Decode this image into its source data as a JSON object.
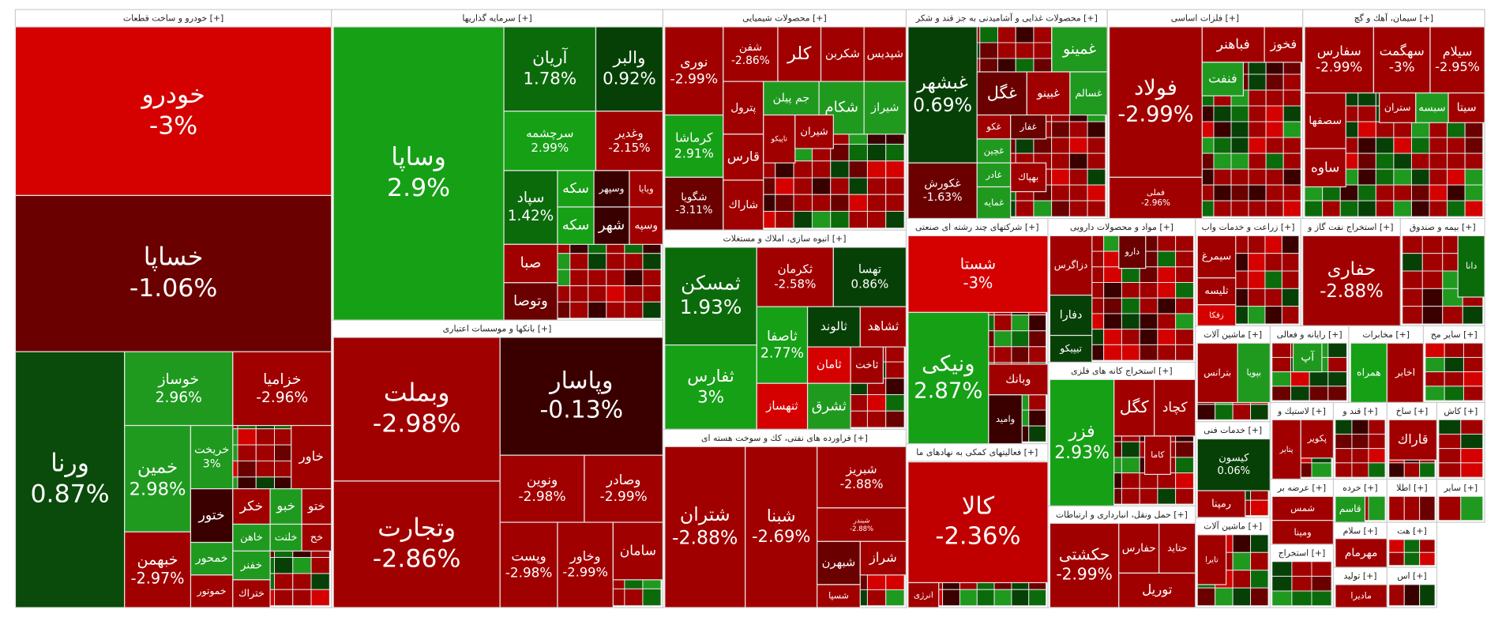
{
  "sectors": [
    {
      "title": "خودرو و ساخت قطعات [+]",
      "tiles": [
        {
          "label": "خودرو",
          "change": "-3%",
          "color": "#d50000"
        },
        {
          "label": "خساپا",
          "change": "-1.06%",
          "color": "#6b0000"
        },
        {
          "label": "ورنا",
          "change": "0.87%",
          "color": "#0a4a0a"
        },
        {
          "label": "خوساز",
          "change": "2.96%",
          "color": "#1f9a1f"
        },
        {
          "label": "خزامیا",
          "change": "-2.96%",
          "color": "#a10000"
        },
        {
          "label": "خمین",
          "change": "2.98%",
          "color": "#1f9a1f"
        },
        {
          "label": "خریخت",
          "change": "3%",
          "color": "#1f9a1f"
        },
        {
          "label": "خاور",
          "color": "#a10000"
        },
        {
          "label": "ختور",
          "color": "#3a0000"
        },
        {
          "label": "خکر",
          "color": "#a10000"
        },
        {
          "label": "خبو",
          "color": "#1f9a1f"
        },
        {
          "label": "ختو",
          "color": "#a10000"
        },
        {
          "label": "خاهن",
          "color": "#1f9a1f"
        },
        {
          "label": "خلنت",
          "color": "#1f9a1f"
        },
        {
          "label": "خح",
          "color": "#a10000"
        },
        {
          "label": "خمحور",
          "color": "#1f9a1f"
        },
        {
          "label": "خفنر",
          "color": "#1f9a1f"
        },
        {
          "label": "خموتور",
          "color": "#a10000"
        },
        {
          "label": "ختراك",
          "color": "#a10000"
        },
        {
          "label": "خبهمن",
          "change": "-2.97%",
          "color": "#a10000"
        }
      ]
    },
    {
      "title": "سرمایه گذاریها [+]",
      "tiles": [
        {
          "label": "وساپا",
          "change": "2.9%",
          "color": "#16a016"
        },
        {
          "label": "آریان",
          "change": "1.78%",
          "color": "#0b6b0b"
        },
        {
          "label": "والبر",
          "change": "0.92%",
          "color": "#064006"
        },
        {
          "label": "سرچشمه",
          "change": "2.99%",
          "color": "#16a016"
        },
        {
          "label": "وغدیر",
          "change": "-2.15%",
          "color": "#a10000"
        },
        {
          "label": "سپاد",
          "change": "1.42%",
          "color": "#0b6b0b"
        },
        {
          "label": "سکه",
          "color": "#16a016"
        },
        {
          "label": "وسپهر",
          "color": "#3a0000"
        },
        {
          "label": "ویایا",
          "color": "#a10000"
        },
        {
          "label": "سکه",
          "color": "#16a016"
        },
        {
          "label": "شهر",
          "color": "#3a0000"
        },
        {
          "label": "وسپه",
          "color": "#a10000"
        },
        {
          "label": "صبا",
          "color": "#a10000"
        },
        {
          "label": "وتوصا",
          "color": "#6b0000"
        }
      ]
    },
    {
      "title": "بانكها و موسسات اعتباری [+]",
      "tiles": [
        {
          "label": "وبملت",
          "change": "-2.98%",
          "color": "#a10000"
        },
        {
          "label": "وپاسار",
          "change": "-0.13%",
          "color": "#3a0000"
        },
        {
          "label": "وتجارت",
          "change": "-2.86%",
          "color": "#a10000"
        },
        {
          "label": "ونوین",
          "change": "-2.98%",
          "color": "#a10000"
        },
        {
          "label": "وصادر",
          "change": "-2.99%",
          "color": "#a10000"
        },
        {
          "label": "وپست",
          "change": "-2.98%",
          "color": "#a10000"
        },
        {
          "label": "وخاور",
          "change": "-2.99%",
          "color": "#a10000"
        },
        {
          "label": "سامان",
          "color": "#a10000"
        }
      ]
    },
    {
      "title": "محصولات شیمیایی [+]",
      "tiles": [
        {
          "label": "نوری",
          "change": "-2.99%",
          "color": "#a10000"
        },
        {
          "label": "کرماشا",
          "change": "2.91%",
          "color": "#16a016"
        },
        {
          "label": "شگویا",
          "change": "-3.11%",
          "color": "#6b0000"
        },
        {
          "label": "شفن",
          "change": "-2.86%",
          "color": "#a10000"
        },
        {
          "label": "كلر",
          "color": "#a10000"
        },
        {
          "label": "شکربن",
          "color": "#a10000"
        },
        {
          "label": "شپدیس",
          "color": "#a10000"
        },
        {
          "label": "پترول",
          "color": "#a10000"
        },
        {
          "label": "جم پیلن",
          "color": "#1f9a1f"
        },
        {
          "label": "شکام",
          "color": "#1f9a1f"
        },
        {
          "label": "شیراز",
          "color": "#1f9a1f"
        },
        {
          "label": "قارس",
          "color": "#a10000"
        },
        {
          "label": "تاپیکو",
          "color": "#a10000"
        },
        {
          "label": "شیران",
          "color": "#a10000"
        },
        {
          "label": "شاراك",
          "color": "#a10000"
        }
      ]
    },
    {
      "title": "انبوه سازی، املاك و مستغلات [+]",
      "tiles": [
        {
          "label": "ثمسکن",
          "change": "1.93%",
          "color": "#0b6b0b"
        },
        {
          "label": "ثفارس",
          "change": "3%",
          "color": "#16a016"
        },
        {
          "label": "ثکرمان",
          "change": "-2.58%",
          "color": "#a10000"
        },
        {
          "label": "تهسا",
          "change": "0.86%",
          "color": "#064006"
        },
        {
          "label": "ثاصفا",
          "change": "2.77%",
          "color": "#16a016"
        },
        {
          "label": "ثالوند",
          "color": "#064006"
        },
        {
          "label": "ثشاهد",
          "color": "#a10000"
        },
        {
          "label": "ثامان",
          "color": "#d50000"
        },
        {
          "label": "ثاخت",
          "color": "#a10000"
        },
        {
          "label": "ثنهساز",
          "color": "#d50000"
        },
        {
          "label": "ثشرق",
          "color": "#1f9a1f"
        }
      ]
    },
    {
      "title": "فراورده های نفتی، كك و سوخت هسته ای [+]",
      "tiles": [
        {
          "label": "شتران",
          "change": "-2.88%",
          "color": "#a10000"
        },
        {
          "label": "شبنا",
          "change": "-2.69%",
          "color": "#a10000"
        },
        {
          "label": "شبریز",
          "change": "-2.88%",
          "color": "#a10000"
        },
        {
          "label": "شبندر",
          "change": "-2.88%",
          "color": "#a10000"
        },
        {
          "label": "شبهرن",
          "color": "#6b0000"
        },
        {
          "label": "شراز",
          "color": "#a10000"
        },
        {
          "label": "شسپا",
          "color": "#a10000"
        }
      ]
    },
    {
      "title": "محصولات غذایی و آشامیدنی به جز قند و شکر [+]",
      "tiles": [
        {
          "label": "غبشهر",
          "change": "0.69%",
          "color": "#064006"
        },
        {
          "label": "غکورش",
          "change": "-1.63%",
          "color": "#6b0000"
        },
        {
          "label": "غمینو",
          "color": "#1f9a1f"
        },
        {
          "label": "غگل",
          "color": "#6b0000"
        },
        {
          "label": "غبینو",
          "color": "#a10000"
        },
        {
          "label": "غسالم",
          "color": "#1f9a1f"
        },
        {
          "label": "غکو",
          "color": "#a10000"
        },
        {
          "label": "غفار",
          "color": "#6b0000"
        },
        {
          "label": "غچین",
          "color": "#1f9a1f"
        },
        {
          "label": "غادر",
          "color": "#1f9a1f"
        },
        {
          "label": "بهپاك",
          "color": "#a10000"
        },
        {
          "label": "غمایه",
          "color": "#1f9a1f"
        }
      ]
    },
    {
      "title": "فلزات اساسی [+]",
      "tiles": [
        {
          "label": "فولاد",
          "change": "-2.99%",
          "color": "#a10000"
        },
        {
          "label": "فملی",
          "change": "-2.96%",
          "color": "#a10000"
        },
        {
          "label": "فباهنر",
          "color": "#a10000"
        },
        {
          "label": "فخوز",
          "color": "#a10000"
        },
        {
          "label": "فنفت",
          "color": "#1f9a1f"
        }
      ]
    },
    {
      "title": "سیمان، آهك و گچ [+]",
      "tiles": [
        {
          "label": "سفارس",
          "change": "-2.99%",
          "color": "#a10000"
        },
        {
          "label": "سهگمت",
          "change": "-3%",
          "color": "#a10000"
        },
        {
          "label": "سیلام",
          "change": "-2.95%",
          "color": "#a10000"
        },
        {
          "label": "سصفها",
          "color": "#a10000"
        },
        {
          "label": "ستران",
          "color": "#a10000"
        },
        {
          "label": "سبسه",
          "color": "#1f9a1f"
        },
        {
          "label": "سیتا",
          "color": "#a10000"
        },
        {
          "label": "ساوه",
          "color": "#a10000"
        }
      ]
    },
    {
      "title": "شرکتهای چند رشته ای صنعتی [+]",
      "tiles": [
        {
          "label": "شستا",
          "change": "-3%",
          "color": "#d50000"
        },
        {
          "label": "ونیکی",
          "change": "2.87%",
          "color": "#16a016"
        },
        {
          "label": "وبانك",
          "color": "#a10000"
        },
        {
          "label": "وامید",
          "color": "#3a0000"
        }
      ]
    },
    {
      "title": "فعالیتهای کمکی به نهادهای ما [+]",
      "tiles": [
        {
          "label": "کالا",
          "change": "-2.36%",
          "color": "#c00000"
        },
        {
          "label": "انرژی",
          "color": "#a10000"
        }
      ]
    },
    {
      "title": "مواد و محصولات دارویی [+]",
      "tiles": [
        {
          "label": "دزاگرس",
          "color": "#a10000"
        },
        {
          "label": "دفارا",
          "color": "#064006"
        },
        {
          "label": "تیپیکو",
          "color": "#064006"
        },
        {
          "label": "دارو",
          "color": "#6b0000"
        }
      ]
    },
    {
      "title": "استخراج کانه های فلزی [+]",
      "tiles": [
        {
          "label": "فزر",
          "change": "2.93%",
          "color": "#16a016"
        },
        {
          "label": "کگل",
          "color": "#a10000"
        },
        {
          "label": "کچاد",
          "color": "#a10000"
        },
        {
          "label": "کاما",
          "color": "#a10000"
        }
      ]
    },
    {
      "title": "حمل ونقل، انبارداری و ارتباطات [+]",
      "tiles": [
        {
          "label": "حکشتی",
          "change": "-2.99%",
          "color": "#a10000"
        },
        {
          "label": "حفارس",
          "color": "#a10000"
        },
        {
          "label": "حتاید",
          "color": "#a10000"
        },
        {
          "label": "توریل",
          "color": "#a10000"
        }
      ]
    },
    {
      "title": "زراعت و خدمات واب [+]",
      "tiles": [
        {
          "label": "سیمرغ",
          "color": "#a10000"
        },
        {
          "label": "تلیسه",
          "color": "#a10000"
        },
        {
          "label": "زفکا",
          "color": "#d50000"
        }
      ]
    },
    {
      "title": "استخراج نفت گاز و [+]",
      "tiles": [
        {
          "label": "حفاری",
          "change": "-2.88%",
          "color": "#a10000"
        }
      ]
    },
    {
      "title": "بیمه و صندوق [+]",
      "tiles": [
        {
          "label": "دانا",
          "color": "#0b6b0b"
        }
      ]
    },
    {
      "title": "ماشین آلات [+]",
      "tiles": [
        {
          "label": "بترانس",
          "color": "#a10000"
        },
        {
          "label": "بپویا",
          "color": "#1f9a1f"
        }
      ]
    },
    {
      "title": "رایانه و فعالی [+]",
      "tiles": [
        {
          "label": "آپ",
          "color": "#1f9a1f"
        }
      ]
    },
    {
      "title": "مخابرات [+]",
      "tiles": [
        {
          "label": "همراه",
          "color": "#16a016"
        },
        {
          "label": "اخابر",
          "color": "#a10000"
        }
      ]
    },
    {
      "title": "سایر مح [+]",
      "tiles": []
    },
    {
      "title": "خدمات فنی [+]",
      "tiles": [
        {
          "label": "کیسون",
          "change": "0.06%",
          "color": "#064006"
        },
        {
          "label": "رمپنا",
          "color": "#a10000"
        }
      ]
    },
    {
      "title": "لاستیك و [+]",
      "tiles": [
        {
          "label": "پتایر",
          "color": "#a10000"
        },
        {
          "label": "پکویر",
          "color": "#a10000"
        }
      ]
    },
    {
      "title": "قند و [+]",
      "tiles": []
    },
    {
      "title": "ساخ [+]",
      "tiles": [
        {
          "label": "قاراك",
          "color": "#a10000"
        }
      ]
    },
    {
      "title": "کاش [+]",
      "tiles": []
    },
    {
      "title": "عرضه بر [+]",
      "tiles": [
        {
          "label": "شمس",
          "color": "#a10000"
        },
        {
          "label": "ومینا",
          "color": "#a10000"
        }
      ]
    },
    {
      "title": "خرده [+]",
      "tiles": [
        {
          "label": "قاسم",
          "color": "#1f9a1f"
        }
      ]
    },
    {
      "title": "اطلا [+]",
      "tiles": []
    },
    {
      "title": "سایر [+]",
      "tiles": []
    },
    {
      "title": "ماشین آلات [+]",
      "tiles": [
        {
          "label": "تایرا",
          "color": "#a10000"
        }
      ]
    },
    {
      "title": "سلام [+]",
      "tiles": [
        {
          "label": "مهرمام",
          "color": "#a10000"
        }
      ]
    },
    {
      "title": "هت [+]",
      "tiles": []
    },
    {
      "title": "استخراج [+]",
      "tiles": []
    },
    {
      "title": "تولید [+]",
      "tiles": [
        {
          "label": "مادیرا",
          "color": "#a10000"
        }
      ]
    },
    {
      "title": "اس [+]",
      "tiles": []
    }
  ]
}
